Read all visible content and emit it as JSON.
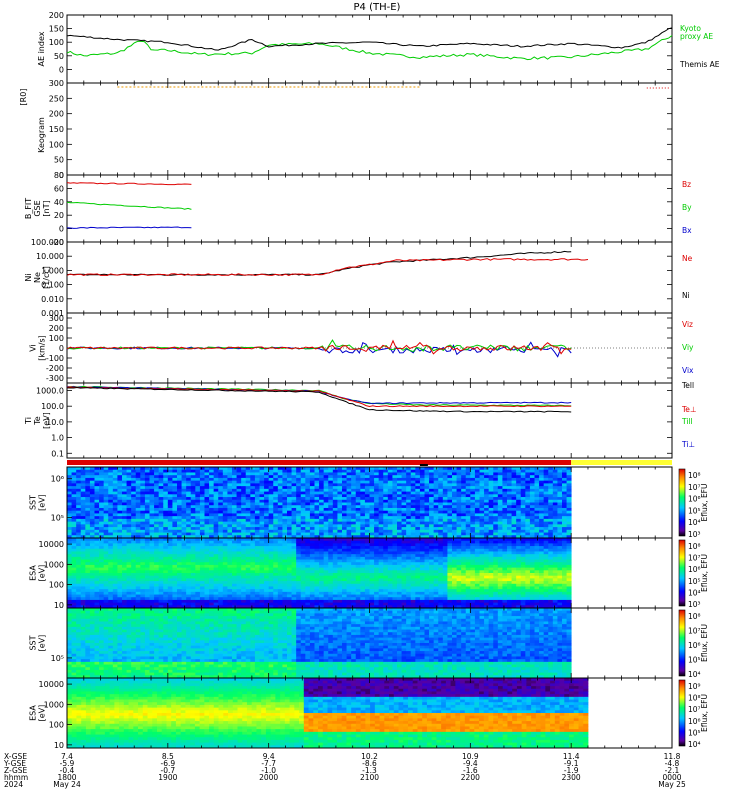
{
  "title": "P4 (TH-E)",
  "colors": {
    "black": "#000000",
    "red": "#dd0000",
    "green": "#00cc00",
    "blue": "#0000cc",
    "orange": "#ee9900",
    "yellow": "#ffff33"
  },
  "chart_data": [
    {
      "type": "line",
      "panel": "ae",
      "ylabel": "AE index",
      "ylim": [
        -50,
        200
      ],
      "yticks": [
        "200",
        "150",
        "100",
        "50",
        "0"
      ],
      "ytick_values": [
        200,
        150,
        100,
        50,
        0
      ],
      "series": [
        {
          "name": "Kyoto proxy AE",
          "name_lines": [
            "Kyoto",
            "proxy AE"
          ],
          "color": "#00cc00",
          "x": [
            1800,
            1810,
            1830,
            1845,
            1850,
            1900,
            1920,
            1950,
            2000,
            2030,
            2100,
            2130,
            2200,
            2230,
            2300,
            2345,
            2400
          ],
          "values": [
            65,
            50,
            60,
            110,
            70,
            70,
            55,
            60,
            90,
            95,
            60,
            45,
            55,
            40,
            45,
            75,
            125
          ]
        },
        {
          "name": "Themis AE",
          "name_lines": [
            "Themis AE"
          ],
          "color": "#000000",
          "x": [
            1800,
            1830,
            1900,
            1930,
            1950,
            2000,
            2030,
            2100,
            2130,
            2200,
            2230,
            2300,
            2330,
            2345,
            2400
          ],
          "values": [
            125,
            110,
            100,
            70,
            110,
            85,
            95,
            100,
            85,
            95,
            85,
            95,
            80,
            100,
            155
          ]
        }
      ]
    },
    {
      "type": "heatmap",
      "panel": "keogram",
      "ylabel": "Keogram",
      "ylabel2": "[R0]",
      "ylim": [
        0,
        300
      ],
      "yticks": [
        "300",
        "250",
        "200",
        "150",
        "100",
        "50",
        "0"
      ],
      "ytick_values": [
        300,
        250,
        200,
        150,
        100,
        50,
        0
      ]
    },
    {
      "type": "line",
      "panel": "bfield",
      "ylabel_lines": [
        "B_FIT",
        "GSE",
        "[nT]"
      ],
      "ylim": [
        -20,
        80
      ],
      "yticks": [
        "80",
        "60",
        "40",
        "20",
        "0",
        "-20"
      ],
      "ytick_values": [
        80,
        60,
        40,
        20,
        0,
        -20
      ],
      "series": [
        {
          "name": "Bz",
          "color": "#dd0000",
          "x": [
            1800,
            1915
          ],
          "values": [
            68,
            66
          ]
        },
        {
          "name": "By",
          "color": "#00cc00",
          "x": [
            1800,
            1915
          ],
          "values": [
            39,
            29
          ]
        },
        {
          "name": "Bx",
          "color": "#0000cc",
          "x": [
            1800,
            1915
          ],
          "values": [
            1,
            2
          ]
        }
      ]
    },
    {
      "type": "line",
      "panel": "density",
      "yscale": "log",
      "ylabel_lines": [
        "Ni",
        "Ne",
        "[1/cc]"
      ],
      "ylim": [
        0.001,
        100
      ],
      "yticks": [
        "100.000",
        "10.000",
        "1.000",
        "0.100",
        "0.010",
        "0.001"
      ],
      "ytick_values": [
        100,
        10,
        1,
        0.1,
        0.01,
        0.001
      ],
      "series": [
        {
          "name": "Ne",
          "color": "#dd0000",
          "x": [
            1800,
            1900,
            2030,
            2045,
            2100,
            2115,
            2130,
            2200,
            2300,
            2310
          ],
          "values": [
            0.5,
            0.5,
            0.5,
            1.5,
            2.5,
            5,
            5,
            6,
            6,
            6
          ]
        },
        {
          "name": "Ni",
          "color": "#000000",
          "x": [
            1800,
            1900,
            2030,
            2045,
            2100,
            2115,
            2130,
            2200,
            2230,
            2300
          ],
          "values": [
            0.5,
            0.5,
            0.5,
            1.2,
            2.5,
            4,
            5,
            8,
            15,
            22
          ]
        }
      ]
    },
    {
      "type": "line",
      "panel": "velocity",
      "ylabel_lines": [
        "Vi",
        "[km/s]"
      ],
      "ylim": [
        -350,
        350
      ],
      "yticks": [
        "300",
        "200",
        "100",
        "0",
        "-100",
        "-200",
        "-300"
      ],
      "ytick_values": [
        300,
        200,
        100,
        0,
        -100,
        -200,
        -300
      ],
      "series": [
        {
          "name": "Viz",
          "color": "#dd0000"
        },
        {
          "name": "Viy",
          "color": "#00cc00"
        },
        {
          "name": "Vix",
          "color": "#0000cc"
        }
      ]
    },
    {
      "type": "line",
      "panel": "temperature",
      "yscale": "log",
      "ylabel_lines": [
        "Ti",
        "Te",
        "[eV]"
      ],
      "ylim": [
        0.05,
        3000
      ],
      "yticks": [
        "1000.0",
        "100.0",
        "10.0",
        "1.0",
        "0.1"
      ],
      "ytick_values": [
        1000,
        100,
        10,
        1,
        0.1
      ],
      "series": [
        {
          "name": "Tell",
          "color": "#000000",
          "x": [
            1800,
            2030,
            2045,
            2100,
            2130,
            2200,
            2300
          ],
          "values": [
            1500,
            800,
            200,
            60,
            50,
            45,
            45
          ]
        },
        {
          "name": "Te⊥",
          "color": "#dd0000",
          "x": [
            1800,
            2030,
            2045,
            2100,
            2300
          ],
          "values": [
            1600,
            900,
            300,
            100,
            100
          ]
        },
        {
          "name": "Till",
          "color": "#00cc00",
          "x": [
            1800,
            2030,
            2045,
            2100,
            2130,
            2300
          ],
          "values": [
            1800,
            1000,
            300,
            150,
            120,
            110
          ]
        },
        {
          "name": "Ti⊥",
          "color": "#0000cc",
          "x": [
            1800,
            2030,
            2045,
            2100,
            2130,
            2300
          ],
          "values": [
            1700,
            900,
            300,
            150,
            160,
            170
          ]
        }
      ]
    },
    {
      "type": "heatmap",
      "panel": "sst_i",
      "ylabel_lines": [
        "SST",
        "[eV]"
      ],
      "ylim": [
        30000,
        2000000
      ],
      "yticks": [
        "10⁶",
        "10⁵"
      ],
      "ytick_values": [
        1000000,
        100000
      ],
      "colorbar_ticks": [
        "10⁸",
        "10⁷",
        "10⁶",
        "10⁵",
        "10⁴",
        "10³"
      ],
      "colorbar_label": "Eflux, EFU"
    },
    {
      "type": "heatmap",
      "panel": "esa_i",
      "ylabel_lines": [
        "ESA",
        "[eV]"
      ],
      "ylim": [
        7,
        20000
      ],
      "yticks": [
        "10000",
        "1000",
        "100",
        "10"
      ],
      "ytick_values": [
        10000,
        1000,
        100,
        10
      ],
      "colorbar_ticks": [
        "10⁸",
        "10⁷",
        "10⁶",
        "10⁵",
        "10⁴",
        "10³"
      ],
      "colorbar_label": "Eflux, EFU"
    },
    {
      "type": "heatmap",
      "panel": "sst_e",
      "ylabel_lines": [
        "SST",
        "[eV]"
      ],
      "ylim": [
        30000,
        2000000
      ],
      "yticks": [
        "10⁵"
      ],
      "ytick_values": [
        100000
      ],
      "colorbar_ticks": [
        "10⁸",
        "10⁷",
        "10⁶",
        "10⁵",
        "10⁴"
      ],
      "colorbar_label": "Eflux, EFU"
    },
    {
      "type": "heatmap",
      "panel": "esa_e",
      "ylabel_lines": [
        "ESA",
        "[eV]"
      ],
      "ylim": [
        7,
        20000
      ],
      "yticks": [
        "10000",
        "1000",
        "100",
        "10"
      ],
      "ytick_values": [
        10000,
        1000,
        100,
        10
      ],
      "colorbar_ticks": [
        "10⁹",
        "10⁸",
        "10⁷",
        "10⁶",
        "10⁵",
        "10⁴"
      ],
      "colorbar_label": "Eflux, EFU"
    }
  ],
  "xaxis": {
    "row_labels": [
      "X-GSE",
      "Y-GSE",
      "Z-GSE",
      "hhmm",
      "2024"
    ],
    "columns": [
      {
        "x": 1800,
        "vals": [
          "7.4",
          "-5.9",
          "-0.4",
          "1800",
          "May 24"
        ]
      },
      {
        "x": 1900,
        "vals": [
          "8.5",
          "-6.9",
          "-0.7",
          "1900",
          ""
        ]
      },
      {
        "x": 2000,
        "vals": [
          "9.4",
          "-7.7",
          "-1.0",
          "2000",
          ""
        ]
      },
      {
        "x": 2100,
        "vals": [
          "10.2",
          "-8.6",
          "-1.3",
          "2100",
          ""
        ]
      },
      {
        "x": 2200,
        "vals": [
          "10.9",
          "-9.4",
          "-1.6",
          "2200",
          ""
        ]
      },
      {
        "x": 2300,
        "vals": [
          "11.4",
          "-9.1",
          "-1.9",
          "2300",
          ""
        ]
      },
      {
        "x": 2400,
        "vals": [
          "11.8",
          "-4.8",
          "-2.1",
          "0000",
          "May 25"
        ]
      }
    ]
  }
}
